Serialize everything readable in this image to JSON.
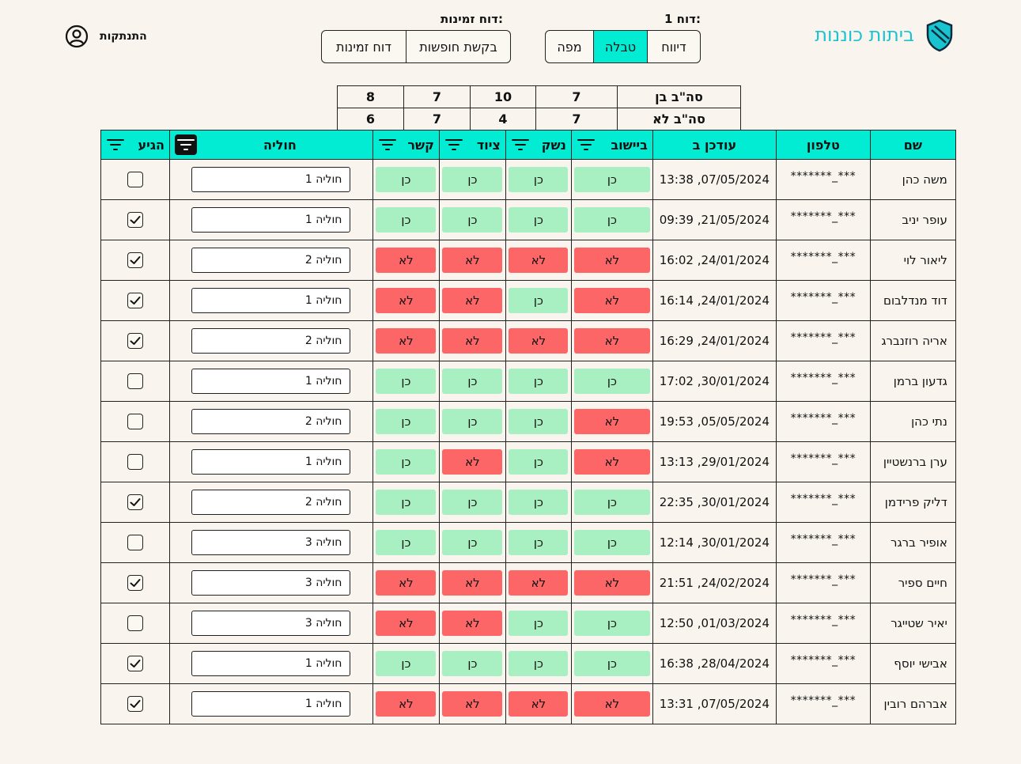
{
  "app": {
    "title": "ביתות כוננות",
    "logo_icon": "shield-icon",
    "accent": "#02ecd4"
  },
  "nav": {
    "report1": {
      "label": "דוח 1:",
      "options": [
        "דיווח",
        "טבלה",
        "מפה"
      ],
      "active": 1
    },
    "availability": {
      "label": "דוח זמינות:",
      "options": [
        "בקשת חופשות",
        "דוח זמינות"
      ],
      "active": -1
    }
  },
  "user": {
    "logout_label": "התנתקות",
    "icon": "user-circle-icon"
  },
  "summary": {
    "rows": [
      {
        "label": "סה\"ב בן",
        "values": [
          "7",
          "10",
          "7",
          "8"
        ]
      },
      {
        "label": "סה\"ב לא",
        "values": [
          "7",
          "4",
          "7",
          "6"
        ]
      }
    ]
  },
  "table": {
    "headers": {
      "name": "שם",
      "phone": "טלפון",
      "updated": "עודכן ב",
      "settlement": "ביישוב",
      "weapon": "נשק",
      "equipment": "ציוד",
      "contact": "קשר",
      "cell": "חוליה",
      "arrived": "הגיע"
    },
    "yes_label": "כן",
    "no_label": "לא",
    "rows": [
      {
        "name": "משה כהן",
        "phone": "***_*******",
        "time": "07/05/2024, 13:38",
        "s": [
          1,
          1,
          1,
          1
        ],
        "cell": "חוליה 1",
        "arrived": false
      },
      {
        "name": "עופר יניב",
        "phone": "***_*******",
        "time": "21/05/2024, 09:39",
        "s": [
          1,
          1,
          1,
          1
        ],
        "cell": "חוליה 1",
        "arrived": true
      },
      {
        "name": "ליאור לוי",
        "phone": "***_*******",
        "time": "24/01/2024, 16:02",
        "s": [
          0,
          0,
          0,
          0
        ],
        "cell": "חוליה 2",
        "arrived": true
      },
      {
        "name": "דוד מנדלבום",
        "phone": "***_*******",
        "time": "24/01/2024, 16:14",
        "s": [
          0,
          1,
          0,
          0
        ],
        "cell": "חוליה 1",
        "arrived": true
      },
      {
        "name": "אריה רוזנברג",
        "phone": "***_*******",
        "time": "24/01/2024, 16:29",
        "s": [
          0,
          0,
          0,
          0
        ],
        "cell": "חוליה 2",
        "arrived": true
      },
      {
        "name": "גדעון ברמן",
        "phone": "***_*******",
        "time": "30/01/2024, 17:02",
        "s": [
          1,
          1,
          1,
          1
        ],
        "cell": "חוליה 1",
        "arrived": false
      },
      {
        "name": "נתי כהן",
        "phone": "***_*******",
        "time": "05/05/2024, 19:53",
        "s": [
          0,
          1,
          1,
          1
        ],
        "cell": "חוליה 2",
        "arrived": false
      },
      {
        "name": "ערן ברנשטיין",
        "phone": "***_*******",
        "time": "29/01/2024, 13:13",
        "s": [
          0,
          1,
          0,
          1
        ],
        "cell": "חוליה 1",
        "arrived": false
      },
      {
        "name": "דליק פרידמן",
        "phone": "***_*******",
        "time": "30/01/2024, 22:35",
        "s": [
          1,
          1,
          1,
          1
        ],
        "cell": "חוליה 2",
        "arrived": true
      },
      {
        "name": "אופיר ברגר",
        "phone": "***_*******",
        "time": "30/01/2024, 12:14",
        "s": [
          1,
          1,
          1,
          1
        ],
        "cell": "חוליה 3",
        "arrived": false
      },
      {
        "name": "חיים ספיר",
        "phone": "***_*******",
        "time": "24/02/2024, 21:51",
        "s": [
          0,
          0,
          0,
          0
        ],
        "cell": "חוליה 3",
        "arrived": true
      },
      {
        "name": "יאיר שטייגר",
        "phone": "***_*******",
        "time": "01/03/2024, 12:50",
        "s": [
          1,
          1,
          0,
          0
        ],
        "cell": "חוליה 3",
        "arrived": false
      },
      {
        "name": "אבישי יוסף",
        "phone": "***_*******",
        "time": "28/04/2024, 16:38",
        "s": [
          1,
          1,
          1,
          1
        ],
        "cell": "חוליה 1",
        "arrived": true
      },
      {
        "name": "אברהם רובין",
        "phone": "***_*******",
        "time": "07/05/2024, 13:31",
        "s": [
          0,
          0,
          0,
          0
        ],
        "cell": "חוליה 1",
        "arrived": true
      }
    ]
  },
  "colors": {
    "yes": "#a8efc1",
    "no": "#fd6667",
    "header": "#02ecd4",
    "logo": "#19c3d0"
  }
}
